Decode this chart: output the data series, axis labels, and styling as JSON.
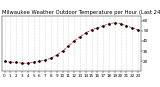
{
  "title": "Milwaukee Weather Outdoor Temperature per Hour (Last 24 Hours)",
  "hours": [
    0,
    1,
    2,
    3,
    4,
    5,
    6,
    7,
    8,
    9,
    10,
    11,
    12,
    13,
    14,
    15,
    16,
    17,
    18,
    19,
    20,
    21,
    22,
    23
  ],
  "temps": [
    20,
    19,
    19,
    18,
    18,
    19,
    20,
    21,
    23,
    26,
    30,
    35,
    40,
    44,
    48,
    51,
    53,
    55,
    57,
    58,
    57,
    55,
    53,
    51
  ],
  "line_color": "#dd0000",
  "marker_color": "#000000",
  "bg_color": "#ffffff",
  "grid_color": "#bbbbbb",
  "ylim": [
    10,
    65
  ],
  "yticks": [
    20,
    30,
    40,
    50,
    60
  ],
  "title_fontsize": 3.8,
  "tick_fontsize": 3.0
}
